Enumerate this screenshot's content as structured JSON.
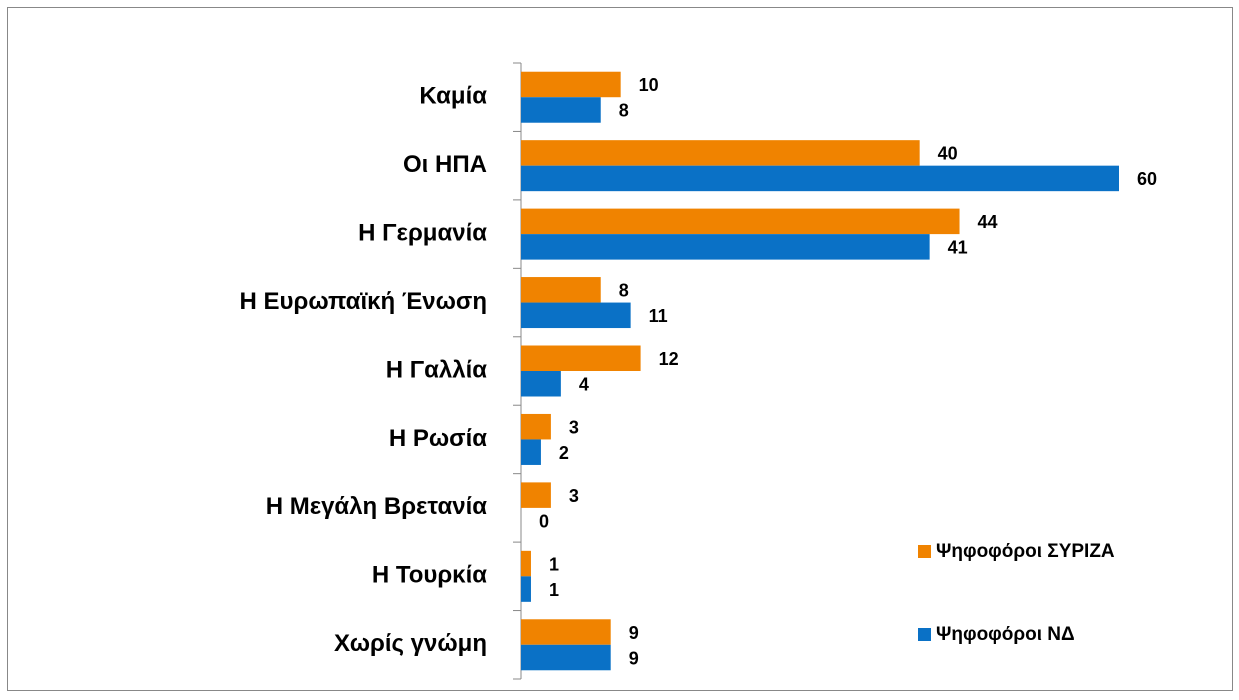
{
  "chart_data": {
    "type": "hbar",
    "categories": [
      "Καμία",
      "Οι ΗΠΑ",
      "Η Γερμανία",
      "Η Ευρωπαϊκή Ένωση",
      "Η Γαλλία",
      "Η Ρωσία",
      "Η Μεγάλη Βρετανία",
      "Η Τουρκία",
      "Χωρίς γνώμη"
    ],
    "series": [
      {
        "name": "Ψηφοφόροι ΣΥΡΙΖΑ",
        "color": "#f08300",
        "values": [
          10,
          40,
          44,
          8,
          12,
          3,
          3,
          1,
          9
        ]
      },
      {
        "name": "Ψηφοφόροι ΝΔ",
        "color": "#0a71c6",
        "values": [
          8,
          60,
          41,
          11,
          4,
          2,
          0,
          1,
          9
        ]
      }
    ],
    "legend": "right"
  }
}
